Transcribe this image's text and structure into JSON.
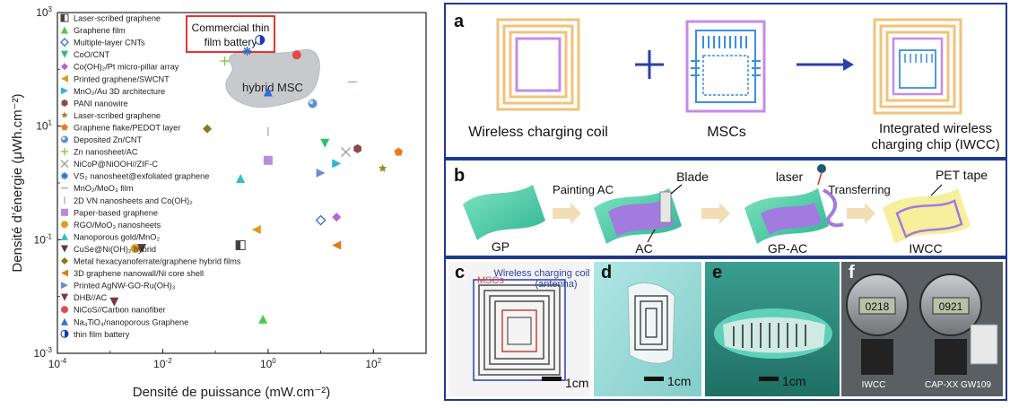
{
  "chart_data": {
    "type": "scatter",
    "xlabel": "Densité de puissance (mW.cm⁻²)",
    "ylabel": "Densité d’énergie (μWh.cm⁻²)",
    "x_log": true,
    "y_log": true,
    "xlim": [
      0.0001,
      1000
    ],
    "ylim": [
      0.001,
      1000
    ],
    "x_ticks": [
      {
        "base": "10",
        "exp": "-4"
      },
      {
        "base": "10",
        "exp": "-2"
      },
      {
        "base": "10",
        "exp": "0"
      },
      {
        "base": "10",
        "exp": "2"
      }
    ],
    "y_ticks": [
      {
        "base": "10",
        "exp": "-3"
      },
      {
        "base": "10",
        "exp": "-1"
      },
      {
        "base": "10",
        "exp": "1"
      },
      {
        "base": "10",
        "exp": "3"
      }
    ],
    "region_label": "hybrid MSC",
    "callout_label": [
      "Commercial thin",
      "film battery"
    ],
    "series": [
      {
        "name": "Laser-scribed graphene",
        "marker": "halfsquare",
        "color": "#444444",
        "x": 0.3,
        "y": 0.08
      },
      {
        "name": "Graphene film",
        "marker": "triangle-up",
        "color": "#4cc94c",
        "x": 0.8,
        "y": 0.004
      },
      {
        "name": "Multiple-layer CNTs",
        "marker": "diamond-open",
        "color": "#3a6fd8",
        "x": 10,
        "y": 0.22
      },
      {
        "name": "CoO/CNT",
        "marker": "triangle-down",
        "color": "#2fbf6f",
        "x": 12,
        "y": 5
      },
      {
        "name": "Co(OH)₂/Pt micro-pillar array",
        "marker": "diamond",
        "color": "#b766d6",
        "x": 20,
        "y": 0.25
      },
      {
        "name": "Printed graphene/SWCNT",
        "marker": "triangle-left",
        "color": "#e09a1c",
        "x": 0.6,
        "y": 0.15
      },
      {
        "name": "MnO₂/Au 3D architecture",
        "marker": "triangle-right",
        "color": "#2fb3d6",
        "x": 20,
        "y": 2.2
      },
      {
        "name": "PANI nanowire",
        "marker": "hexagon",
        "color": "#8a4a4a",
        "x": 50,
        "y": 4
      },
      {
        "name": "Laser-scribed graphene",
        "marker": "star",
        "color": "#9a8a2a",
        "x": 150,
        "y": 1.8
      },
      {
        "name": "Graphene flake/PEDOT layer",
        "marker": "pentagon",
        "color": "#f07a1a",
        "x": 300,
        "y": 3.5
      },
      {
        "name": "Deposited Zn/CNT",
        "marker": "circle-shaded",
        "color": "#5b8fd6",
        "x": 7,
        "y": 25
      },
      {
        "name": "Zn nanosheet/AC",
        "marker": "plus",
        "color": "#7ac94c",
        "x": 0.15,
        "y": 140
      },
      {
        "name": "NiCoP@NiOOH//ZIF-C",
        "marker": "cross",
        "color": "#999999",
        "x": 30,
        "y": 3.5
      },
      {
        "name": "VS₂ nanosheet@exfoliated graphene",
        "marker": "asterisk",
        "color": "#2b6fd8",
        "x": 0.4,
        "y": 210
      },
      {
        "name": "MnO₂/MoO₃ film",
        "marker": "hline",
        "color": "#8aa8e6",
        "x": 40,
        "y": 60
      },
      {
        "name": "2D VN nanosheets and Co(OH)₂",
        "marker": "vline",
        "color": "#aaaaaa",
        "x": 1,
        "y": 8
      },
      {
        "name": "Paper-based graphene",
        "marker": "square",
        "color": "#b78de0",
        "x": 1,
        "y": 2.5
      },
      {
        "name": "RGO/MoO₃ nanosheets",
        "marker": "circle",
        "color": "#d8a020",
        "x": 0.003,
        "y": 0.07
      },
      {
        "name": "Nanoporous gold/MnO₂",
        "marker": "triangle-up",
        "color": "#30c0c0",
        "x": 0.3,
        "y": 1.2
      },
      {
        "name": "CuSe@Ni(OH)₂ hybrid",
        "marker": "triangle-down",
        "color": "#5a3a3a",
        "x": 0.004,
        "y": 0.07
      },
      {
        "name": "Metal hexacyanoferrate/graphene hybrid films",
        "marker": "diamond",
        "color": "#8a7a1a",
        "x": 0.07,
        "y": 9
      },
      {
        "name": "3D graphene nanowall/Ni core shell",
        "marker": "triangle-left",
        "color": "#e07a1a",
        "x": 20,
        "y": 0.08
      },
      {
        "name": "Printed AgNW-GO-Ru(OH)₃",
        "marker": "triangle-right",
        "color": "#6a8fd0",
        "x": 10,
        "y": 1.5
      },
      {
        "name": "DHB//AC",
        "marker": "triangle-down",
        "color": "#7a3a3a",
        "x": 0.0012,
        "y": 0.008
      },
      {
        "name": "NiCoS//Carbon nanofiber",
        "marker": "circle",
        "color": "#e04a4a",
        "x": 3.5,
        "y": 180
      },
      {
        "name": "Na₄TiO₄/nanoporous Graphene",
        "marker": "triangle-up",
        "color": "#2b6fd8",
        "x": 1,
        "y": 40
      },
      {
        "name": "thin film battery",
        "marker": "circle-half",
        "color": "#1a3ab8",
        "x": 0.7,
        "y": 330
      }
    ]
  },
  "panels": {
    "a": {
      "letter": "a",
      "captions": [
        "Wireless charging coil",
        "MSCs",
        "Integrated wireless",
        "charging chip (IWCC)"
      ]
    },
    "b": {
      "letter": "b",
      "labels": [
        "Painting AC",
        "Blade",
        "laser",
        "Transferring",
        "PET tape",
        "GP",
        "AC",
        "GP-AC",
        "IWCC"
      ]
    },
    "photos": {
      "c_letter": "c",
      "c_label_mscs": "MSCs",
      "c_label_coil1": "Wireless charging coil",
      "c_label_coil2": "(antenna)",
      "c_scale": "1cm",
      "d_letter": "d",
      "d_scale": "1cm",
      "e_letter": "e",
      "e_scale": "1cm",
      "f_letter": "f",
      "f_reading1": "0218",
      "f_reading2": "0921",
      "f_caption1": "IWCC",
      "f_caption2": "CAP-XX GW109"
    }
  }
}
